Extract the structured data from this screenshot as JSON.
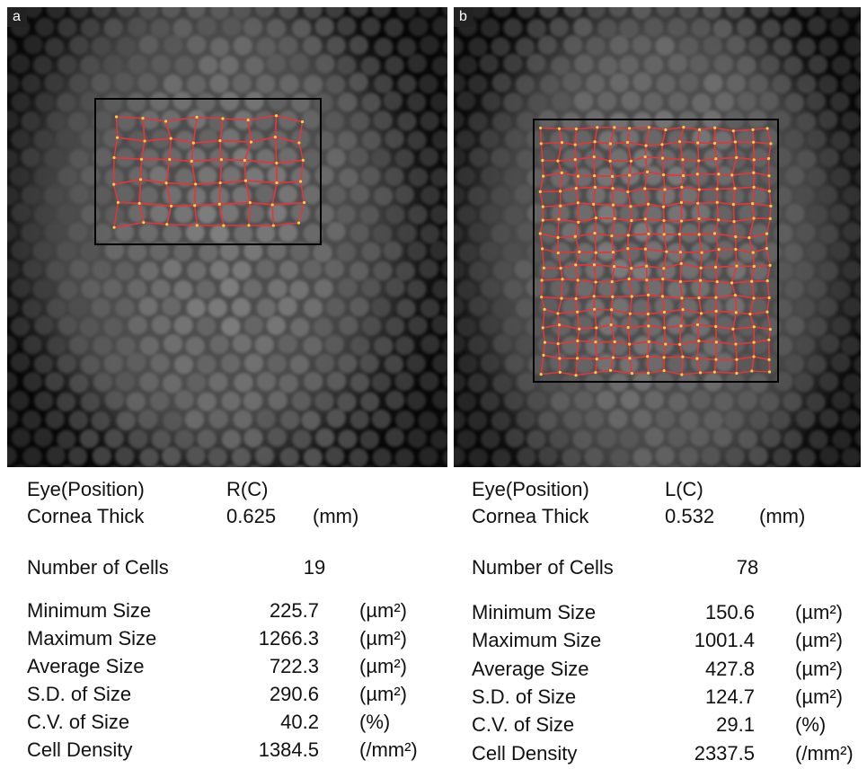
{
  "panels": [
    {
      "label": "a",
      "rows": [
        [
          "Eye(Position)",
          "R(C)"
        ],
        [
          "Cornea Thick",
          "0.625",
          "(mm)"
        ],
        [
          "Number of Cells",
          "19"
        ],
        [
          "Minimum Size",
          "225.7",
          "(µm²)"
        ],
        [
          "Maximum Size",
          "1266.3",
          "(µm²)"
        ],
        [
          "Average Size",
          "722.3",
          "(µm²)"
        ],
        [
          "S.D. of Size",
          "290.6",
          "(µm²)"
        ],
        [
          "C.V. of Size",
          "40.2",
          "(%)"
        ],
        [
          "Cell Density",
          "1384.5",
          "(/mm²)"
        ]
      ]
    },
    {
      "label": "b",
      "rows": [
        [
          "Eye(Position)",
          "L(C)"
        ],
        [
          "Cornea Thick",
          "0.532",
          "(mm)"
        ],
        [
          "Number of Cells",
          "78"
        ],
        [
          "Minimum Size",
          "150.6",
          "(µm²)"
        ],
        [
          "Maximum Size",
          "1001.4",
          "(µm²)"
        ],
        [
          "Average Size",
          "427.8",
          "(µm²)"
        ],
        [
          "S.D. of Size",
          "124.7",
          "(µm²)"
        ],
        [
          "C.V. of Size",
          "29.1",
          "(%)"
        ],
        [
          "Cell Density",
          "2337.5",
          "(/mm²)"
        ]
      ]
    }
  ]
}
